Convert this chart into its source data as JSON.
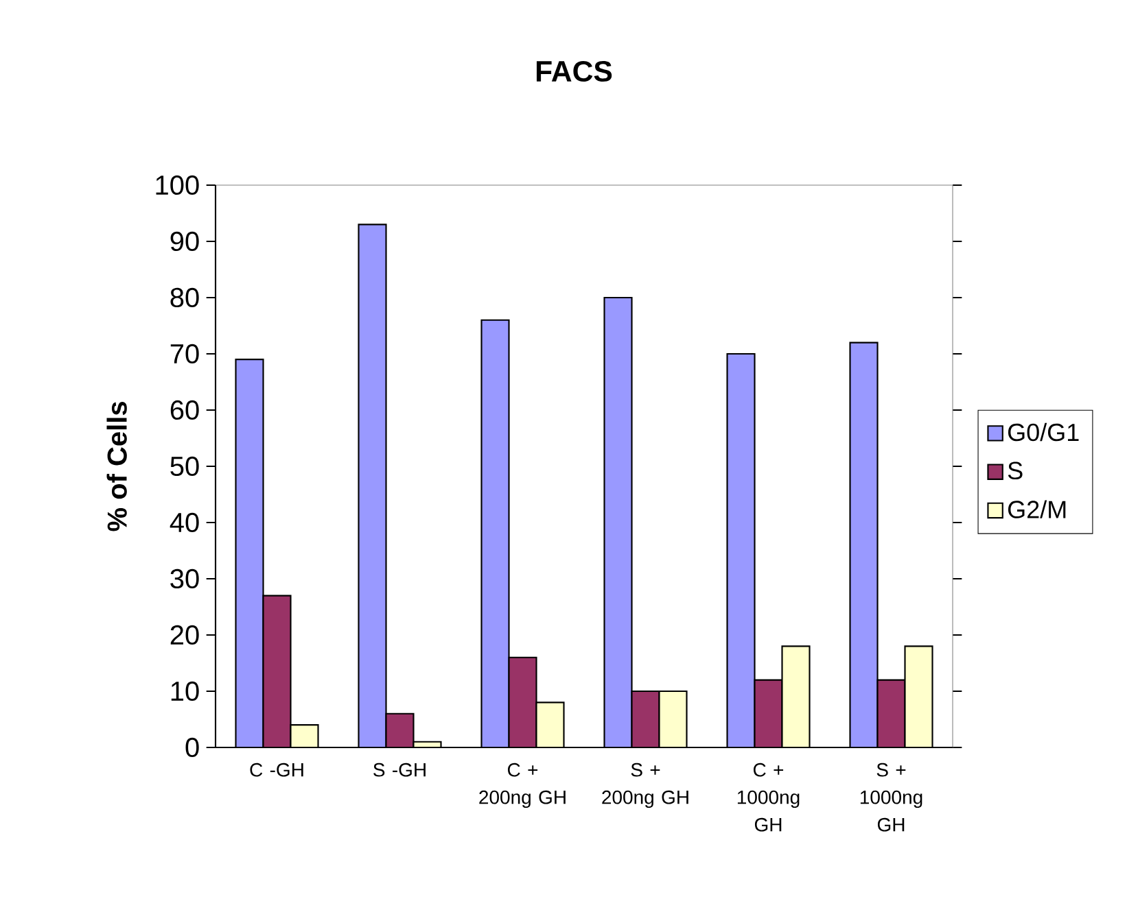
{
  "chart_data": {
    "type": "bar",
    "title": "FACS",
    "ylabel": "% of Cells",
    "categories": [
      "C -GH",
      "S -GH",
      "C + 200ng GH",
      "S + 200ng GH",
      "C + 1000ng GH",
      "S + 1000ng GH"
    ],
    "series": [
      {
        "name": "G0/G1",
        "color": "#9999ff",
        "values": [
          69,
          93,
          76,
          80,
          70,
          72
        ]
      },
      {
        "name": "S",
        "color": "#993366",
        "values": [
          27,
          6,
          16,
          10,
          12,
          12
        ]
      },
      {
        "name": "G2/M",
        "color": "#ffffcc",
        "values": [
          4,
          1,
          8,
          10,
          18,
          18
        ]
      }
    ],
    "ylim": [
      0,
      100
    ],
    "yticks": [
      0,
      10,
      20,
      30,
      40,
      50,
      60,
      70,
      80,
      90,
      100
    ],
    "grid": false,
    "legend": "right"
  }
}
